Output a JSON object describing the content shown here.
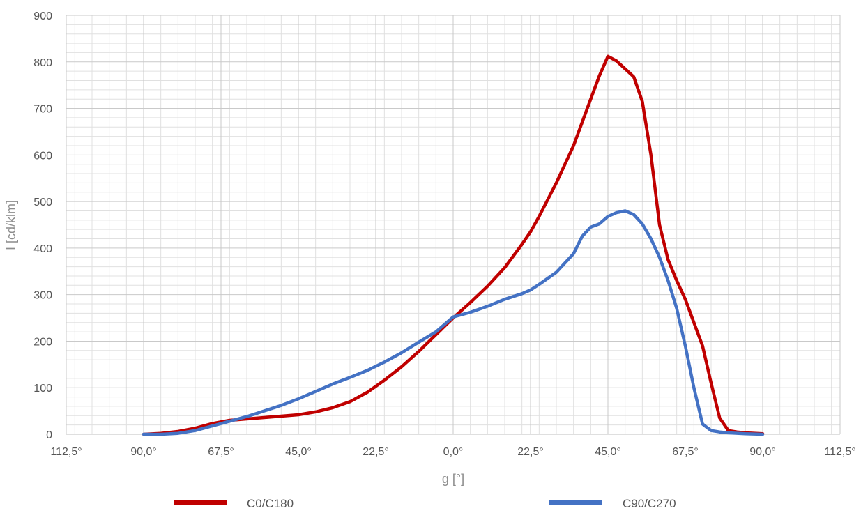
{
  "chart_data": {
    "type": "line",
    "title": "",
    "xlabel": "g [°]",
    "ylabel": "I [cd/klm]",
    "x_signed_range": [
      -112.5,
      112.5
    ],
    "ylim": [
      0,
      900
    ],
    "x_ticks": [
      {
        "value": -112.5,
        "label": "112,5°"
      },
      {
        "value": -90,
        "label": "90,0°"
      },
      {
        "value": -67.5,
        "label": "67,5°"
      },
      {
        "value": -45,
        "label": "45,0°"
      },
      {
        "value": -22.5,
        "label": "22,5°"
      },
      {
        "value": 0,
        "label": "0,0°"
      },
      {
        "value": 22.5,
        "label": "22,5°"
      },
      {
        "value": 45,
        "label": "45,0°"
      },
      {
        "value": 67.5,
        "label": "67,5°"
      },
      {
        "value": 90,
        "label": "90,0°"
      },
      {
        "value": 112.5,
        "label": "112,5°"
      }
    ],
    "y_ticks": [
      0,
      100,
      200,
      300,
      400,
      500,
      600,
      700,
      800,
      900
    ],
    "grid": true,
    "legend": "bottom",
    "series": [
      {
        "name": "C0/C180",
        "color": "#c00000",
        "points": [
          [
            -90,
            0
          ],
          [
            -85,
            2
          ],
          [
            -80,
            6
          ],
          [
            -75,
            13
          ],
          [
            -70,
            23
          ],
          [
            -65,
            30
          ],
          [
            -60,
            33
          ],
          [
            -55,
            36
          ],
          [
            -50,
            39
          ],
          [
            -45,
            42
          ],
          [
            -40,
            48
          ],
          [
            -35,
            57
          ],
          [
            -30,
            70
          ],
          [
            -25,
            90
          ],
          [
            -20,
            116
          ],
          [
            -15,
            145
          ],
          [
            -10,
            178
          ],
          [
            -5,
            214
          ],
          [
            0,
            250
          ],
          [
            5,
            283
          ],
          [
            10,
            318
          ],
          [
            15,
            358
          ],
          [
            20,
            408
          ],
          [
            22.5,
            435
          ],
          [
            25,
            468
          ],
          [
            30,
            540
          ],
          [
            35,
            620
          ],
          [
            40,
            720
          ],
          [
            42.5,
            770
          ],
          [
            45,
            812
          ],
          [
            47.5,
            802
          ],
          [
            50,
            785
          ],
          [
            52.5,
            768
          ],
          [
            55,
            715
          ],
          [
            57.5,
            600
          ],
          [
            60,
            450
          ],
          [
            62.5,
            375
          ],
          [
            65,
            330
          ],
          [
            67.5,
            290
          ],
          [
            70,
            240
          ],
          [
            72.5,
            190
          ],
          [
            75,
            110
          ],
          [
            77.5,
            35
          ],
          [
            80,
            8
          ],
          [
            82.5,
            5
          ],
          [
            85,
            3
          ],
          [
            90,
            1
          ]
        ]
      },
      {
        "name": "C90/C270",
        "color": "#4472c4",
        "points": [
          [
            -90,
            0
          ],
          [
            -85,
            0
          ],
          [
            -80,
            2
          ],
          [
            -75,
            8
          ],
          [
            -70,
            18
          ],
          [
            -65,
            28
          ],
          [
            -60,
            38
          ],
          [
            -55,
            50
          ],
          [
            -50,
            62
          ],
          [
            -45,
            76
          ],
          [
            -40,
            92
          ],
          [
            -35,
            108
          ],
          [
            -30,
            122
          ],
          [
            -25,
            137
          ],
          [
            -20,
            155
          ],
          [
            -15,
            175
          ],
          [
            -10,
            198
          ],
          [
            -5,
            220
          ],
          [
            0,
            252
          ],
          [
            5,
            262
          ],
          [
            10,
            275
          ],
          [
            15,
            290
          ],
          [
            20,
            302
          ],
          [
            22.5,
            310
          ],
          [
            25,
            322
          ],
          [
            30,
            348
          ],
          [
            35,
            388
          ],
          [
            37.5,
            425
          ],
          [
            40,
            445
          ],
          [
            42.5,
            452
          ],
          [
            45,
            468
          ],
          [
            47.5,
            476
          ],
          [
            50,
            480
          ],
          [
            52.5,
            472
          ],
          [
            55,
            452
          ],
          [
            57.5,
            420
          ],
          [
            60,
            380
          ],
          [
            62.5,
            330
          ],
          [
            65,
            270
          ],
          [
            67.5,
            190
          ],
          [
            70,
            100
          ],
          [
            72.5,
            22
          ],
          [
            75,
            8
          ],
          [
            77.5,
            5
          ],
          [
            80,
            3
          ],
          [
            85,
            1
          ],
          [
            90,
            0
          ]
        ]
      }
    ]
  }
}
